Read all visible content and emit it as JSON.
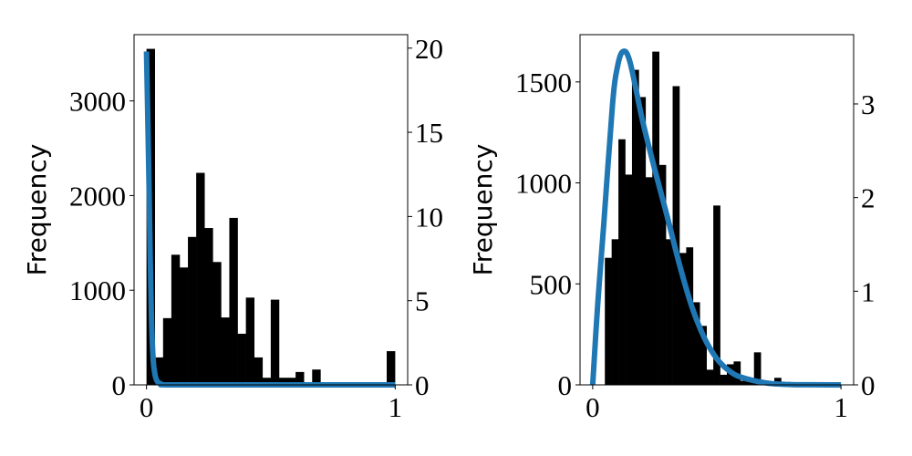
{
  "chart_data": [
    {
      "type": "bar",
      "subtype": "histogram-with-density-curve",
      "ylabel": "Frequency",
      "xlim": [
        -0.05,
        1.05
      ],
      "ylim": [
        0,
        3700
      ],
      "y2lim": [
        0,
        20.8
      ],
      "xticks": [
        "0",
        "1"
      ],
      "xtick_values": [
        0,
        1
      ],
      "yticks": [
        "0",
        "1000",
        "2000",
        "3000"
      ],
      "ytick_values": [
        0,
        1000,
        2000,
        3000
      ],
      "y2ticks": [
        "0",
        "5",
        "10",
        "15",
        "20"
      ],
      "y2tick_values": [
        0,
        5,
        10,
        15,
        20
      ],
      "grid": false,
      "bar_color": "#000000",
      "line_color": "#1f77b4",
      "bin_start": 0,
      "bin_width": 0.0333,
      "values": [
        3550,
        290,
        705,
        1375,
        1240,
        1563,
        2240,
        1657,
        1298,
        712,
        1764,
        540,
        922,
        290,
        75,
        900,
        75,
        75,
        136,
        10,
        162,
        0,
        20,
        0,
        0,
        0,
        0,
        0,
        0,
        356
      ],
      "curve": {
        "x": [
          0,
          0.005,
          0.01,
          0.015,
          0.02,
          0.025,
          0.03,
          0.04,
          0.06,
          0.1,
          0.5,
          1.0
        ],
        "y": [
          19.8,
          16,
          12,
          7.5,
          4,
          2,
          1,
          0.3,
          0.05,
          0,
          0,
          0
        ]
      }
    },
    {
      "type": "bar",
      "subtype": "histogram-with-density-curve",
      "ylabel": "Frequency",
      "xlim": [
        -0.051,
        1.051
      ],
      "ylim": [
        0,
        1734
      ],
      "y2lim": [
        0,
        3.74
      ],
      "xticks": [
        "0",
        "1"
      ],
      "xtick_values": [
        0,
        1
      ],
      "yticks": [
        "0",
        "500",
        "1000",
        "1500"
      ],
      "ytick_values": [
        0,
        500,
        1000,
        1500
      ],
      "y2ticks": [
        "0",
        "1",
        "2",
        "3"
      ],
      "y2tick_values": [
        0,
        1,
        2,
        3
      ],
      "grid": false,
      "bar_color": "#000000",
      "line_color": "#1f77b4",
      "bin_start": 0.049,
      "bin_width": 0.0273,
      "values": [
        629,
        721,
        1216,
        1041,
        1560,
        1425,
        1028,
        1650,
        1089,
        721,
        1479,
        653,
        681,
        409,
        292,
        75,
        888,
        50,
        102,
        116,
        20,
        15,
        161,
        8,
        8,
        35
      ],
      "curve": {
        "x": [
          0,
          0.02,
          0.045,
          0.08,
          0.1,
          0.122,
          0.15,
          0.2,
          0.25,
          0.3,
          0.35,
          0.4,
          0.45,
          0.5,
          0.55,
          0.6,
          0.7,
          0.8,
          1.0
        ],
        "y": [
          0,
          0.85,
          1.73,
          3.0,
          3.4,
          3.56,
          3.45,
          2.83,
          2.3,
          1.8,
          1.28,
          0.83,
          0.5,
          0.28,
          0.15,
          0.08,
          0.02,
          0.003,
          0
        ]
      }
    }
  ]
}
